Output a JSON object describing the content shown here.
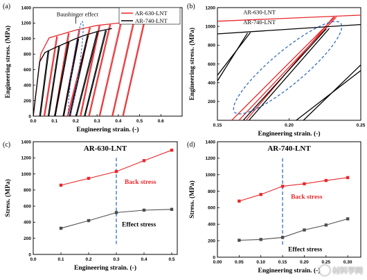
{
  "panels": {
    "a": {
      "letter": "(a)"
    },
    "b": {
      "letter": "(b)"
    },
    "c": {
      "letter": "(c)"
    },
    "d": {
      "letter": "(d)"
    }
  },
  "watermark": {
    "text": "材料学网"
  },
  "colors": {
    "red": "#e8282b",
    "black": "#000000",
    "gray": "#4d4d4d",
    "blue": "#1f5fbf"
  },
  "chart_data": [
    {
      "id": "a",
      "type": "line",
      "xlabel": "Engineering strain. (-)",
      "ylabel": "Engineering stress. (MPa)",
      "xlim": [
        0.0,
        0.7
      ],
      "ylim": [
        0,
        1400
      ],
      "xticks": [
        0.0,
        0.1,
        0.2,
        0.3,
        0.4,
        0.5,
        0.6
      ],
      "xtick_labels": [
        "0.0",
        "0.1",
        "0.2",
        "0.3",
        "0.4",
        "0.5",
        "0.6"
      ],
      "yticks": [
        0,
        200,
        400,
        600,
        800,
        1000,
        1200,
        1400
      ],
      "ytick_labels": [
        "0",
        "200",
        "400",
        "600",
        "800",
        "1000",
        "1200",
        "1400"
      ],
      "legend": [
        "AR-630-LNT",
        "AR-740-LNT"
      ],
      "legend_position": "top-right",
      "annotation": "Baushinger effect",
      "series": [
        {
          "name": "AR-630-LNT",
          "color": "red",
          "envelope": [
            [
              0.0,
              0
            ],
            [
              0.035,
              800
            ],
            [
              0.075,
              1010
            ],
            [
              0.1,
              1030
            ],
            [
              0.15,
              1070
            ],
            [
              0.2,
              1110
            ],
            [
              0.25,
              1140
            ],
            [
              0.3,
              1170
            ],
            [
              0.35,
              1185
            ],
            [
              0.4,
              1200
            ],
            [
              0.45,
              1210
            ],
            [
              0.5,
              1215
            ],
            [
              0.55,
              1218
            ],
            [
              0.58,
              1220
            ],
            [
              0.6,
              1218
            ]
          ],
          "cycles": [
            {
              "start": 0.05,
              "peak": [
                0.11,
                1030
              ]
            },
            {
              "start": 0.1,
              "peak": [
                0.165,
                1075
              ]
            },
            {
              "start": 0.14,
              "peak": [
                0.215,
                1115
              ]
            },
            {
              "start": 0.16,
              "peak": [
                0.265,
                1145
              ]
            },
            {
              "start": 0.22,
              "peak": [
                0.31,
                1170
              ]
            },
            {
              "start": 0.26,
              "peak": [
                0.36,
                1187
              ]
            },
            {
              "start": 0.31,
              "peak": [
                0.41,
                1200
              ]
            },
            {
              "start": 0.37,
              "peak": [
                0.47,
                1210
              ]
            },
            {
              "start": 0.42,
              "peak": [
                0.52,
                1215
              ]
            }
          ]
        },
        {
          "name": "AR-740-LNT",
          "color": "black",
          "envelope": [
            [
              0.0,
              0
            ],
            [
              0.03,
              700
            ],
            [
              0.055,
              820
            ],
            [
              0.1,
              880
            ],
            [
              0.15,
              940
            ],
            [
              0.2,
              1000
            ],
            [
              0.25,
              1050
            ],
            [
              0.3,
              1090
            ],
            [
              0.35,
              1120
            ],
            [
              0.37,
              1130
            ]
          ],
          "cycles": [
            {
              "start": 0.03,
              "peak": [
                0.07,
                850
              ]
            },
            {
              "start": 0.07,
              "peak": [
                0.12,
                910
              ]
            },
            {
              "start": 0.1,
              "peak": [
                0.165,
                960
              ]
            },
            {
              "start": 0.14,
              "peak": [
                0.21,
                1000
              ]
            },
            {
              "start": 0.17,
              "peak": [
                0.255,
                1045
              ]
            },
            {
              "start": 0.2,
              "peak": [
                0.3,
                1085
              ]
            },
            {
              "start": 0.24,
              "peak": [
                0.34,
                1110
              ]
            }
          ]
        }
      ]
    },
    {
      "id": "b",
      "type": "line",
      "xlabel": "Engineering strain. (-)",
      "ylabel": "Engineering stress. (MPa)",
      "xlim": [
        0.15,
        0.25
      ],
      "ylim": [
        0,
        1200
      ],
      "xticks": [
        0.15,
        0.2,
        0.25
      ],
      "xtick_labels": [
        "0.15",
        "0.20",
        "0.25"
      ],
      "yticks": [
        200,
        400,
        600,
        800,
        1000,
        1200
      ],
      "ytick_labels": [
        "200",
        "400",
        "600",
        "800",
        "1000",
        "1200"
      ],
      "labels": [
        "AR-630-LNT",
        "AR-740-LNT"
      ],
      "series": [
        {
          "name": "AR-630-LNT",
          "color": "red",
          "lines": [
            [
              [
                0.15,
                1055
              ],
              [
                0.25,
                1120
              ]
            ],
            [
              [
                0.16,
                0
              ],
              [
                0.232,
                1100
              ]
            ],
            [
              [
                0.165,
                0
              ],
              [
                0.233,
                1100
              ]
            ],
            [
              [
                0.17,
                0
              ],
              [
                0.231,
                1100
              ]
            ]
          ]
        },
        {
          "name": "AR-740-LNT",
          "color": "black",
          "lines": [
            [
              [
                0.15,
                920
              ],
              [
                0.25,
                1020
              ]
            ],
            [
              [
                0.15,
                480
              ],
              [
                0.173,
                935
              ]
            ],
            [
              [
                0.15,
                420
              ],
              [
                0.171,
                930
              ]
            ],
            [
              [
                0.168,
                0
              ],
              [
                0.226,
                975
              ]
            ],
            [
              [
                0.172,
                0
              ],
              [
                0.228,
                978
              ]
            ],
            [
              [
                0.205,
                0
              ],
              [
                0.25,
                530
              ]
            ],
            [
              [
                0.21,
                0
              ],
              [
                0.25,
                590
              ]
            ]
          ]
        }
      ]
    },
    {
      "id": "c",
      "type": "line",
      "title": "AR-630-LNT",
      "xlabel": "Engineering strain. (-)",
      "ylabel": "Stress. (MPa)",
      "xlim": [
        0.0,
        0.52
      ],
      "ylim": [
        0,
        1400
      ],
      "xticks": [
        0.0,
        0.1,
        0.2,
        0.3,
        0.4,
        0.5
      ],
      "xtick_labels": [
        "0.0",
        "0.1",
        "0.2",
        "0.3",
        "0.4",
        "0.5"
      ],
      "yticks": [
        0,
        200,
        400,
        600,
        800,
        1000,
        1200,
        1400
      ],
      "ytick_labels": [
        "0",
        "200",
        "400",
        "600",
        "800",
        "1000",
        "1200",
        "1400"
      ],
      "vline": 0.3,
      "series": [
        {
          "name": "Back stress",
          "color": "red",
          "x": [
            0.1,
            0.2,
            0.3,
            0.4,
            0.5
          ],
          "y": [
            860,
            945,
            1030,
            1165,
            1295
          ]
        },
        {
          "name": "Effect stress",
          "color": "gray",
          "x": [
            0.1,
            0.2,
            0.3,
            0.4,
            0.5
          ],
          "y": [
            325,
            420,
            520,
            550,
            560
          ]
        }
      ]
    },
    {
      "id": "d",
      "type": "line",
      "title": "AR-740-LNT",
      "xlabel": "Engineering strain. (-)",
      "ylabel": "Stress. (MPa)",
      "xlim": [
        0.0,
        0.33
      ],
      "ylim": [
        0,
        1400
      ],
      "xticks": [
        0.0,
        0.05,
        0.1,
        0.15,
        0.2,
        0.25,
        0.3
      ],
      "xtick_labels": [
        "0.00",
        "0.05",
        "0.10",
        "0.15",
        "0.20",
        "0.25",
        "0.30"
      ],
      "yticks": [
        0,
        200,
        400,
        600,
        800,
        1000,
        1200,
        1400
      ],
      "ytick_labels": [
        "0",
        "200",
        "400",
        "600",
        "800",
        "1000",
        "1200",
        "1400"
      ],
      "vline": 0.15,
      "series": [
        {
          "name": "Back stress",
          "color": "red",
          "x": [
            0.05,
            0.1,
            0.15,
            0.2,
            0.25,
            0.3
          ],
          "y": [
            680,
            760,
            860,
            890,
            930,
            965
          ]
        },
        {
          "name": "Effect stress",
          "color": "gray",
          "x": [
            0.05,
            0.1,
            0.15,
            0.2,
            0.25,
            0.3
          ],
          "y": [
            205,
            215,
            240,
            330,
            390,
            465
          ]
        }
      ]
    }
  ]
}
